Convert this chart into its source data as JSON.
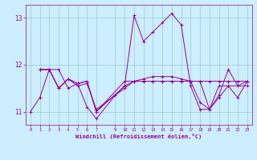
{
  "xlabel": "Windchill (Refroidissement éolien,°C)",
  "bg_color": "#cceeff",
  "line_color": "#990099",
  "grid_color": "#99cccc",
  "xlim": [
    -0.5,
    23.5
  ],
  "ylim": [
    10.72,
    13.28
  ],
  "yticks": [
    11,
    12,
    13
  ],
  "xticks": [
    0,
    1,
    2,
    3,
    4,
    5,
    6,
    7,
    9,
    10,
    11,
    12,
    13,
    14,
    15,
    16,
    17,
    18,
    19,
    20,
    21,
    22,
    23
  ],
  "xtick_labels": [
    "0",
    "1",
    "2",
    "3",
    "4",
    "5",
    "6",
    "7",
    "9",
    "10",
    "11",
    "12",
    "13",
    "14",
    "15",
    "16",
    "17",
    "18",
    "19",
    "20",
    "21",
    "22",
    "23"
  ],
  "series": [
    [
      11.0,
      11.3,
      11.9,
      11.9,
      11.5,
      11.6,
      11.1,
      10.85,
      null,
      11.35,
      11.55,
      13.05,
      12.5,
      12.7,
      12.9,
      13.1,
      12.85,
      11.55,
      11.05,
      11.05,
      11.35,
      11.9,
      11.55,
      11.55
    ],
    [
      null,
      11.9,
      11.9,
      11.5,
      11.7,
      11.6,
      11.65,
      11.0,
      null,
      null,
      11.55,
      11.65,
      11.65,
      11.65,
      11.65,
      11.65,
      11.65,
      11.65,
      11.65,
      11.65,
      11.65,
      11.65,
      11.65,
      11.65
    ],
    [
      null,
      11.9,
      11.9,
      11.5,
      11.7,
      11.6,
      11.65,
      11.0,
      null,
      null,
      11.65,
      11.65,
      11.7,
      11.75,
      11.75,
      11.75,
      11.7,
      11.65,
      11.2,
      11.05,
      11.3,
      11.55,
      11.55,
      11.65
    ],
    [
      null,
      11.9,
      11.9,
      11.5,
      11.7,
      11.55,
      11.6,
      11.05,
      null,
      null,
      11.5,
      11.65,
      11.65,
      11.65,
      11.65,
      11.65,
      11.65,
      11.65,
      11.65,
      11.05,
      11.55,
      11.55,
      11.3,
      11.65
    ]
  ]
}
